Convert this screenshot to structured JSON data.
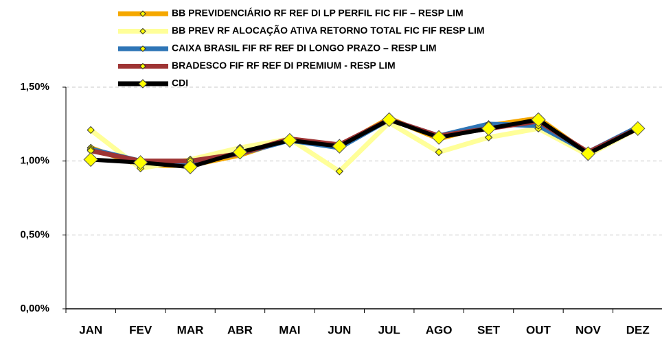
{
  "chart_data": {
    "type": "line",
    "categories": [
      "JAN",
      "FEV",
      "MAR",
      "ABR",
      "MAI",
      "JUN",
      "JUL",
      "AGO",
      "SET",
      "OUT",
      "NOV",
      "DEZ"
    ],
    "series": [
      {
        "name": "BB PREVIDENCIÁRIO RF REF DI LP PERFIL FIC FIF – RESP LIM",
        "color": "#f5a800",
        "values": [
          1.09,
          0.97,
          0.97,
          1.04,
          1.15,
          1.1,
          1.29,
          1.15,
          1.24,
          1.29,
          1.05,
          1.22
        ]
      },
      {
        "name": "BB PREV RF ALOCAÇÃO ATIVA RETORNO TOTAL FIC FIF RESP LIM",
        "color": "#ffff99",
        "values": [
          1.21,
          0.95,
          1.01,
          1.09,
          1.15,
          0.93,
          1.26,
          1.06,
          1.16,
          1.22,
          1.04,
          1.22
        ]
      },
      {
        "name": "CAIXA BRASIL FIF RF REF DI LONGO PRAZO  – RESP LIM",
        "color": "#2e75b6",
        "values": [
          1.08,
          1.0,
          0.99,
          1.05,
          1.14,
          1.09,
          1.28,
          1.17,
          1.25,
          1.24,
          1.06,
          1.23
        ]
      },
      {
        "name": "BRADESCO FIF RF REF DI PREMIUM - RESP LIM",
        "color": "#9e3434",
        "values": [
          1.07,
          1.0,
          1.0,
          1.05,
          1.15,
          1.11,
          1.28,
          1.17,
          1.22,
          1.27,
          1.06,
          1.22
        ]
      },
      {
        "name": "CDI",
        "color": "#000000",
        "values": [
          1.01,
          0.99,
          0.96,
          1.06,
          1.14,
          1.1,
          1.28,
          1.16,
          1.22,
          1.28,
          1.05,
          1.22
        ]
      }
    ],
    "marker_color": "#ffff00",
    "ylim": [
      0,
      1.5
    ],
    "yticks": [
      {
        "value": 0,
        "label": "0,00%"
      },
      {
        "value": 0.5,
        "label": "0,50%"
      },
      {
        "value": 1.0,
        "label": "1,00%"
      },
      {
        "value": 1.5,
        "label": "1,50%"
      }
    ],
    "grid": true,
    "legend": "top"
  }
}
